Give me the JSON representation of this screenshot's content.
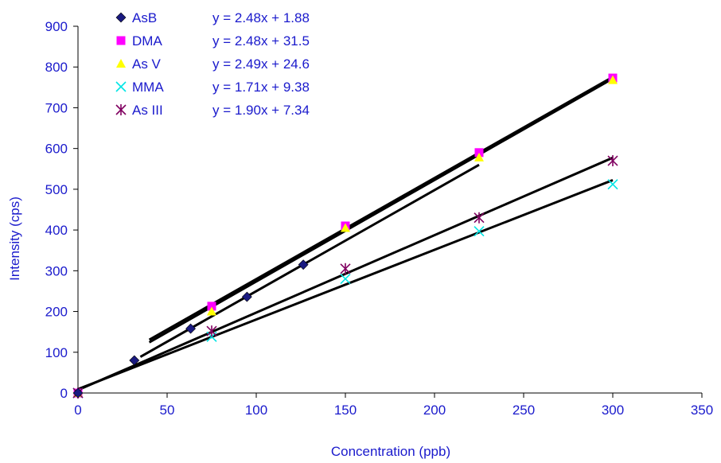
{
  "chart_data": {
    "type": "scatter",
    "title": "",
    "xlabel": "Concentration (ppb)",
    "ylabel": "Intensity (cps)",
    "xlim": [
      0,
      350
    ],
    "ylim": [
      0,
      900
    ],
    "x_ticks": [
      "0",
      "50",
      "100",
      "150",
      "200",
      "250",
      "300",
      "350"
    ],
    "y_ticks": [
      "0",
      "100",
      "200",
      "300",
      "400",
      "500",
      "600",
      "700",
      "800",
      "900"
    ],
    "grid": false,
    "legend_position": "top-left",
    "series": [
      {
        "name": "AsB",
        "marker": "diamond",
        "color": "#1a1a80",
        "equation": "y = 2.48x + 1.88",
        "x": [
          0,
          31.6,
          63.2,
          94.8,
          126.4
        ],
        "y": [
          0,
          80,
          158,
          236,
          315
        ]
      },
      {
        "name": "DMA",
        "marker": "square",
        "color": "#ff00ff",
        "equation": "y = 2.48x + 31.5",
        "x": [
          0,
          75,
          150,
          225,
          300
        ],
        "y": [
          0,
          213,
          410,
          590,
          773
        ]
      },
      {
        "name": "As V",
        "marker": "triangle",
        "color": "#ffff00",
        "equation": "y = 2.49x + 24.6",
        "x": [
          0,
          75,
          150,
          225,
          300
        ],
        "y": [
          0,
          200,
          405,
          578,
          768
        ]
      },
      {
        "name": "MMA",
        "marker": "x",
        "color": "#00e5e5",
        "equation": "y = 1.71x + 9.38",
        "x": [
          0,
          75,
          150,
          225,
          300
        ],
        "y": [
          0,
          138,
          280,
          397,
          512
        ]
      },
      {
        "name": "As III",
        "marker": "star",
        "color": "#800060",
        "equation": "y = 1.90x + 7.34",
        "x": [
          0,
          75,
          150,
          225,
          300
        ],
        "y": [
          0,
          152,
          305,
          430,
          570
        ]
      }
    ],
    "trendlines": [
      {
        "series": "DMA",
        "x_range": [
          40,
          300
        ],
        "slope": 2.48,
        "intercept": 31.5
      },
      {
        "series": "As V",
        "x_range": [
          40,
          300
        ],
        "slope": 2.49,
        "intercept": 24.6
      },
      {
        "series": "AsB",
        "x_range": [
          35,
          225
        ],
        "slope": 2.48,
        "intercept": 1.88
      },
      {
        "series": "MMA",
        "x_range": [
          0,
          300
        ],
        "slope": 1.71,
        "intercept": 9.38
      },
      {
        "series": "As III",
        "x_range": [
          0,
          300
        ],
        "slope": 1.9,
        "intercept": 7.34
      }
    ]
  }
}
